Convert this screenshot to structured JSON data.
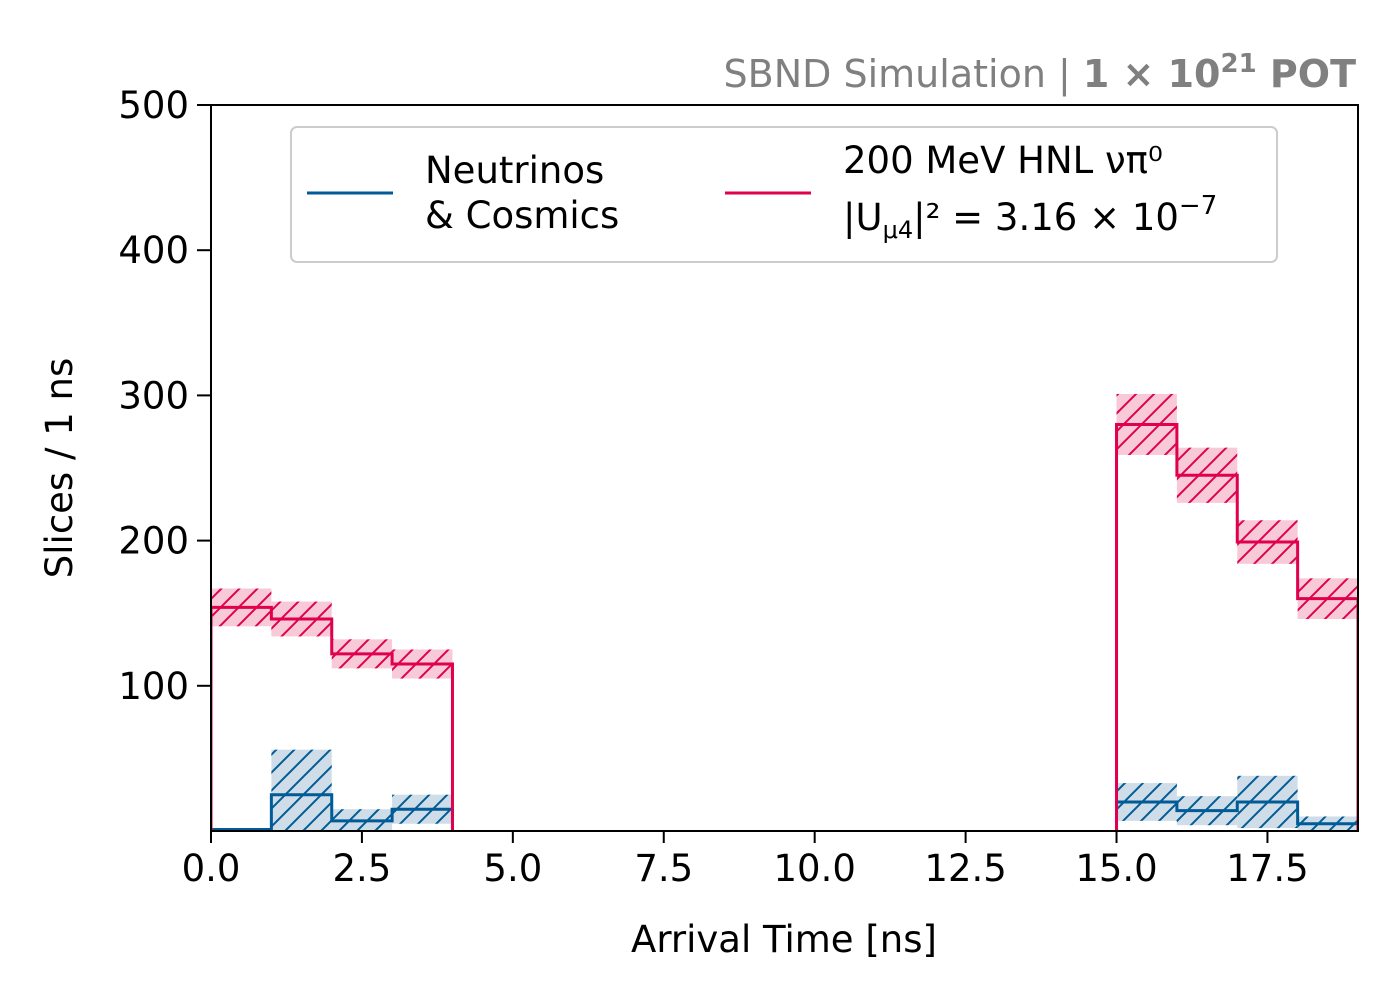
{
  "chart_data": {
    "type": "histogram",
    "headline": {
      "prefix": "SBND Simulation | ",
      "pot_base": "1 × 10",
      "pot_exp": "21",
      "pot_suffix": " POT"
    },
    "xlabel": "Arrival Time [ns]",
    "ylabel": "Slices / 1 ns",
    "xlim": [
      0,
      19
    ],
    "ylim": [
      0,
      500
    ],
    "xticks": [
      "0.0",
      "2.5",
      "5.0",
      "7.5",
      "10.0",
      "12.5",
      "15.0",
      "17.5"
    ],
    "xtick_values": [
      0,
      2.5,
      5,
      7.5,
      10,
      12.5,
      15,
      17.5
    ],
    "yticks": [
      "100",
      "200",
      "300",
      "400",
      "500"
    ],
    "ytick_values": [
      100,
      200,
      300,
      400,
      500
    ],
    "bin_edges": [
      0,
      1,
      2,
      3,
      4,
      15,
      16,
      17,
      18,
      19
    ],
    "legend_position": "top-center",
    "series": [
      {
        "id": "bkg",
        "color": "#005b96",
        "fill": "#cfdde8",
        "legend_line1": "Neutrinos",
        "legend_line2": "& Cosmics",
        "bins": [
          {
            "x0": 0,
            "x1": 1,
            "y": 1,
            "err": 0
          },
          {
            "x0": 1,
            "x1": 2,
            "y": 25,
            "err": 31
          },
          {
            "x0": 2,
            "x1": 3,
            "y": 7,
            "err": 8
          },
          {
            "x0": 3,
            "x1": 4,
            "y": 15,
            "err": 10
          },
          {
            "x0": 15,
            "x1": 16,
            "y": 20,
            "err": 13
          },
          {
            "x0": 16,
            "x1": 17,
            "y": 14,
            "err": 10
          },
          {
            "x0": 17,
            "x1": 18,
            "y": 20,
            "err": 18
          },
          {
            "x0": 18,
            "x1": 19,
            "y": 5,
            "err": 5
          }
        ]
      },
      {
        "id": "sig",
        "color": "#e0004d",
        "fill": "#f8cad8",
        "legend_line1": "200 MeV HNL νπ⁰",
        "legend_line2_base": "|U",
        "legend_line2_sub": "μ4",
        "legend_line2_rest": "|² = 3.16 × 10",
        "legend_line2_sup": "−7",
        "bins": [
          {
            "x0": 0,
            "x1": 1,
            "y": 154,
            "err": 13
          },
          {
            "x0": 1,
            "x1": 2,
            "y": 146,
            "err": 12
          },
          {
            "x0": 2,
            "x1": 3,
            "y": 122,
            "err": 10
          },
          {
            "x0": 3,
            "x1": 4,
            "y": 115,
            "err": 10
          },
          {
            "x0": 15,
            "x1": 16,
            "y": 280,
            "err": 21
          },
          {
            "x0": 16,
            "x1": 17,
            "y": 245,
            "err": 19
          },
          {
            "x0": 17,
            "x1": 18,
            "y": 199,
            "err": 15
          },
          {
            "x0": 18,
            "x1": 19,
            "y": 160,
            "err": 14
          }
        ]
      }
    ]
  }
}
